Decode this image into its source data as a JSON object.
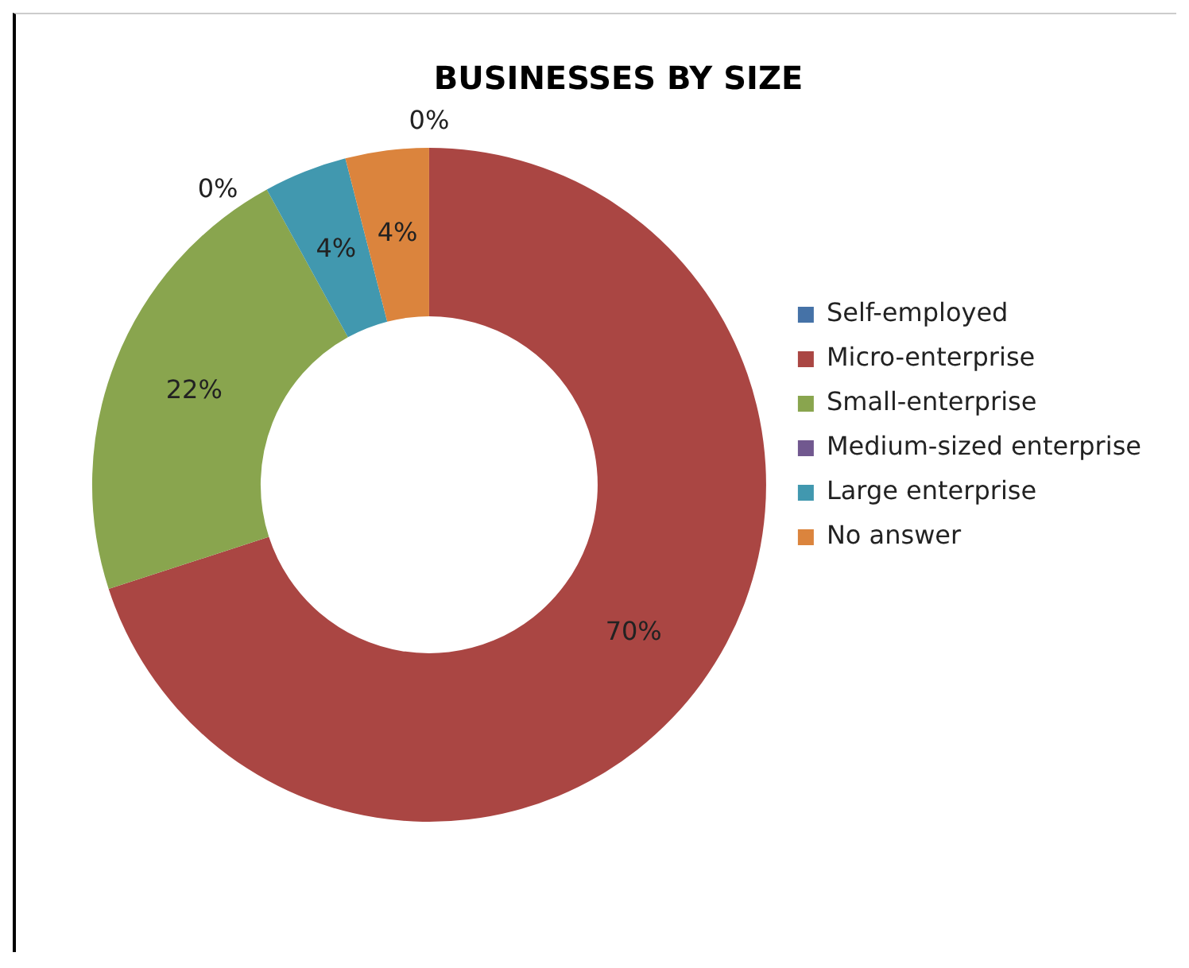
{
  "chart_data": {
    "type": "donut",
    "title": "BUSINESSES BY SIZE",
    "categories": [
      "Self-employed",
      "Micro-enterprise",
      "Small-enterprise",
      "Medium-sized enterprise",
      "Large enterprise",
      "No answer"
    ],
    "values": [
      0,
      70,
      22,
      0,
      4,
      4
    ],
    "colors": [
      "#4572a7",
      "#aa4643",
      "#89a54e",
      "#71588f",
      "#4198af",
      "#db843d"
    ],
    "value_labels": [
      "0%",
      "70%",
      "22%",
      "0%",
      "4%",
      "4%"
    ],
    "legend": "right"
  }
}
